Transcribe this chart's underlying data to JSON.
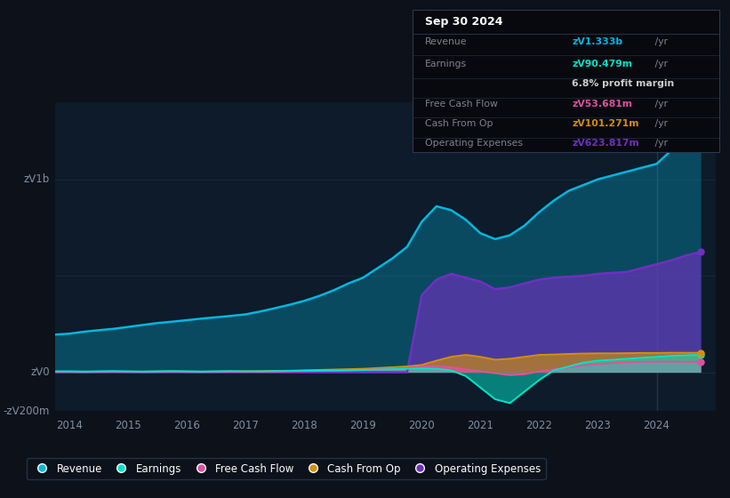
{
  "bg_color": "#0c111a",
  "plot_bg_color": "#0d1b2a",
  "grid_color": "#1a2a3a",
  "title_box": {
    "date": "Sep 30 2024",
    "revenue_label": "Revenue",
    "revenue_val": "zᐯ1.333b",
    "revenue_rest": " /yr",
    "earnings_label": "Earnings",
    "earnings_val": "zᐯ90.479m",
    "earnings_rest": " /yr",
    "profit_margin": "6.8% profit margin",
    "fcf_label": "Free Cash Flow",
    "fcf_val": "zᐯ53.681m",
    "fcf_rest": " /yr",
    "cfo_label": "Cash From Op",
    "cfo_val": "zᐯ101.271m",
    "cfo_rest": " /yr",
    "opex_label": "Operating Expenses",
    "opex_val": "zᐯ623.817m",
    "opex_rest": " /yr"
  },
  "ylabel_top": "zᐯ1b",
  "ylabel_mid": "zᐯ0",
  "ylabel_bot": "-zᐯ200m",
  "years": [
    2013.75,
    2014.0,
    2014.25,
    2014.5,
    2014.75,
    2015.0,
    2015.25,
    2015.5,
    2015.75,
    2016.0,
    2016.25,
    2016.5,
    2016.75,
    2017.0,
    2017.25,
    2017.5,
    2017.75,
    2018.0,
    2018.25,
    2018.5,
    2018.75,
    2019.0,
    2019.25,
    2019.5,
    2019.75,
    2020.0,
    2020.25,
    2020.5,
    2020.75,
    2021.0,
    2021.25,
    2021.5,
    2021.75,
    2022.0,
    2022.25,
    2022.5,
    2022.75,
    2023.0,
    2023.25,
    2023.5,
    2023.75,
    2024.0,
    2024.25,
    2024.5,
    2024.75
  ],
  "revenue": [
    195,
    200,
    210,
    218,
    225,
    235,
    245,
    255,
    262,
    270,
    278,
    285,
    292,
    300,
    315,
    332,
    350,
    370,
    395,
    425,
    460,
    490,
    540,
    590,
    650,
    780,
    860,
    840,
    790,
    720,
    690,
    710,
    760,
    830,
    890,
    940,
    970,
    1000,
    1020,
    1040,
    1060,
    1080,
    1150,
    1240,
    1333
  ],
  "earnings": [
    5,
    5,
    4,
    5,
    6,
    5,
    4,
    5,
    6,
    5,
    4,
    5,
    6,
    5,
    5,
    6,
    7,
    8,
    8,
    9,
    10,
    12,
    14,
    16,
    18,
    20,
    18,
    10,
    -20,
    -80,
    -140,
    -160,
    -100,
    -40,
    10,
    30,
    50,
    60,
    65,
    70,
    75,
    80,
    85,
    88,
    90
  ],
  "free_cash_flow": [
    2,
    2,
    1,
    2,
    3,
    2,
    1,
    2,
    3,
    2,
    1,
    2,
    3,
    3,
    3,
    4,
    5,
    6,
    7,
    8,
    10,
    12,
    15,
    18,
    22,
    28,
    32,
    25,
    15,
    5,
    -5,
    -15,
    -10,
    5,
    15,
    25,
    35,
    42,
    48,
    52,
    54,
    55,
    55,
    54,
    54
  ],
  "cash_from_op": [
    3,
    3,
    2,
    3,
    4,
    3,
    3,
    4,
    5,
    4,
    3,
    4,
    5,
    5,
    6,
    7,
    8,
    10,
    12,
    14,
    16,
    18,
    22,
    26,
    30,
    38,
    60,
    80,
    90,
    80,
    65,
    70,
    80,
    90,
    92,
    95,
    97,
    98,
    98,
    99,
    100,
    100,
    101,
    101,
    101
  ],
  "operating_expenses": [
    0,
    0,
    0,
    0,
    0,
    0,
    0,
    0,
    0,
    0,
    0,
    0,
    0,
    0,
    0,
    0,
    0,
    0,
    0,
    0,
    0,
    0,
    0,
    0,
    0,
    400,
    480,
    510,
    490,
    470,
    430,
    440,
    460,
    480,
    490,
    495,
    500,
    510,
    515,
    520,
    540,
    560,
    580,
    605,
    624
  ],
  "colors": {
    "revenue": "#00b8e0",
    "earnings": "#00e5c8",
    "free_cash_flow": "#e050a0",
    "cash_from_op": "#d4900a",
    "operating_expenses": "#7030c0"
  },
  "legend_labels": [
    "Revenue",
    "Earnings",
    "Free Cash Flow",
    "Cash From Op",
    "Operating Expenses"
  ],
  "ylim": [
    -200,
    1400
  ],
  "xlim": [
    2013.75,
    2025.0
  ],
  "xticks": [
    2014,
    2015,
    2016,
    2017,
    2018,
    2019,
    2020,
    2021,
    2022,
    2023,
    2024
  ],
  "vline_x": 2024.0
}
